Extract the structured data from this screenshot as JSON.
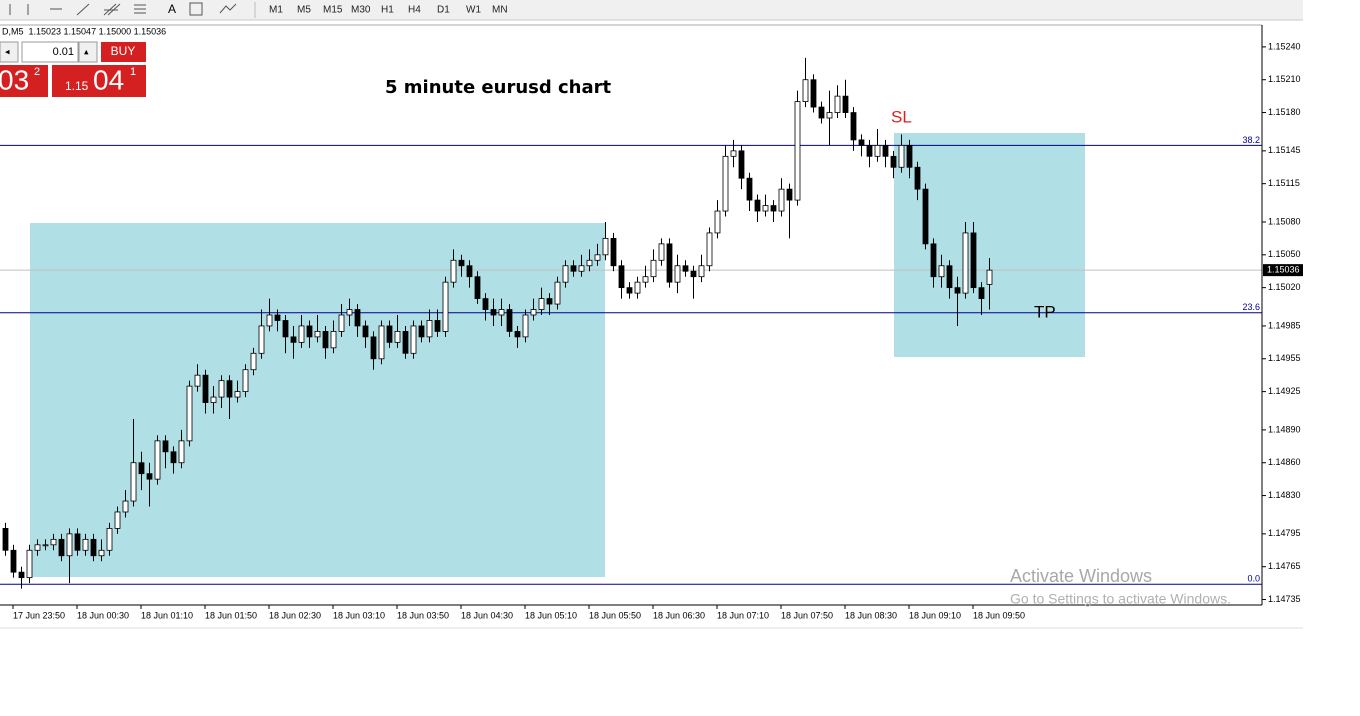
{
  "toolbar": {
    "tool_label": "A",
    "timeframes": [
      "M1",
      "M5",
      "M15",
      "M30",
      "H1",
      "H4",
      "D1",
      "W1",
      "MN"
    ]
  },
  "trade_panel": {
    "symbol_info": "D,M5  1.15023 1.15047 1.15000 1.15036",
    "lot": "0.01",
    "buy": "BUY",
    "sell_price": {
      "big": "03",
      "sup": "2"
    },
    "buy_price": {
      "prefix": "1.15",
      "big": "04",
      "sup": "1"
    }
  },
  "watermark": {
    "title": "Activate Windows",
    "subtitle": "Go to Settings to activate Windows."
  },
  "chart_data": {
    "type": "candlestick",
    "title": "5 minute eurusd chart",
    "annotations": [
      "SL",
      "TP"
    ],
    "categories": [
      null,
      "17 Jun 23:50",
      null,
      null,
      null,
      null,
      null,
      null,
      null,
      "18 Jun 00:30",
      null,
      null,
      null,
      null,
      null,
      null,
      null,
      "18 Jun 01:10",
      null,
      null,
      null,
      null,
      null,
      null,
      null,
      "18 Jun 01:50",
      null,
      null,
      null,
      null,
      null,
      null,
      null,
      "18 Jun 02:30",
      null,
      null,
      null,
      null,
      null,
      null,
      null,
      "18 Jun 03:10",
      null,
      null,
      null,
      null,
      null,
      null,
      null,
      "18 Jun 03:50",
      null,
      null,
      null,
      null,
      null,
      null,
      null,
      "18 Jun 04:30",
      null,
      null,
      null,
      null,
      null,
      null,
      null,
      "18 Jun 05:10",
      null,
      null,
      null,
      null,
      null,
      null,
      null,
      "18 Jun 05:50",
      null,
      null,
      null,
      null,
      null,
      null,
      null,
      "18 Jun 06:30",
      null,
      null,
      null,
      null,
      null,
      null,
      null,
      "18 Jun 07:10",
      null,
      null,
      null,
      null,
      null,
      null,
      null,
      "18 Jun 07:50",
      null,
      null,
      null,
      null,
      null,
      null,
      null,
      "18 Jun 08:30",
      null,
      null,
      null,
      null,
      null,
      null,
      null,
      "18 Jun 09:10",
      null,
      null,
      null,
      null,
      null,
      null,
      null,
      "18 Jun 09:50",
      null,
      null
    ],
    "open": [
      1.148,
      1.1478,
      1.1476,
      1.14755,
      1.1478,
      1.14785,
      1.14785,
      1.1479,
      1.14775,
      1.14795,
      1.1478,
      1.1479,
      1.14775,
      1.1478,
      1.148,
      1.14815,
      1.14825,
      1.1486,
      1.1485,
      1.14845,
      1.1488,
      1.1487,
      1.1486,
      1.1488,
      1.1493,
      1.1494,
      1.14915,
      1.1492,
      1.14935,
      1.1492,
      1.14925,
      1.14945,
      1.1496,
      1.14985,
      1.14995,
      1.1499,
      1.14975,
      1.1497,
      1.14985,
      1.14975,
      1.1498,
      1.14965,
      1.1498,
      1.14995,
      1.15,
      1.14985,
      1.14975,
      1.14955,
      1.14985,
      1.1497,
      1.1498,
      1.1496,
      1.14985,
      1.14975,
      1.1499,
      1.1498,
      1.15025,
      1.15045,
      1.1504,
      1.1503,
      1.1501,
      1.15,
      1.14995,
      1.15,
      1.1498,
      1.14975,
      1.14995,
      1.15,
      1.1501,
      1.15005,
      1.15025,
      1.1504,
      1.15035,
      1.1504,
      1.15045,
      1.1505,
      1.15065,
      1.1504,
      1.1502,
      1.15015,
      1.15025,
      1.1503,
      1.15045,
      1.1506,
      1.15025,
      1.1504,
      1.15035,
      1.1503,
      1.1504,
      1.1507,
      1.1509,
      1.1514,
      1.15145,
      1.1512,
      1.151,
      1.1509,
      1.15095,
      1.1509,
      1.1511,
      1.151,
      1.1519,
      1.1521,
      1.15185,
      1.15175,
      1.1518,
      1.15195,
      1.1518,
      1.15155,
      1.1515,
      1.1514,
      1.1515,
      1.1514,
      1.1513,
      1.1515,
      1.1513,
      1.1511,
      1.1506,
      1.1503,
      1.1504,
      1.1502,
      1.15015,
      1.1507,
      1.1502,
      1.15023
    ],
    "high": [
      1.14805,
      1.14785,
      1.14765,
      1.14785,
      1.1479,
      1.1479,
      1.14795,
      1.14795,
      1.148,
      1.148,
      1.14795,
      1.14795,
      1.1479,
      1.14805,
      1.1482,
      1.14835,
      1.149,
      1.1487,
      1.1486,
      1.14885,
      1.14885,
      1.14875,
      1.1489,
      1.14935,
      1.1495,
      1.14945,
      1.1493,
      1.1494,
      1.1494,
      1.14935,
      1.1495,
      1.14965,
      1.15,
      1.1501,
      1.15,
      1.14995,
      1.14985,
      1.14995,
      1.1499,
      1.14995,
      1.14985,
      1.1499,
      1.15005,
      1.1501,
      1.15005,
      1.1499,
      1.1498,
      1.1499,
      1.1499,
      1.14995,
      1.14985,
      1.1499,
      1.1499,
      1.15,
      1.15,
      1.1503,
      1.15055,
      1.1505,
      1.15045,
      1.15035,
      1.15015,
      1.1501,
      1.1501,
      1.15005,
      1.14985,
      1.15,
      1.1501,
      1.1502,
      1.15015,
      1.1503,
      1.15045,
      1.15045,
      1.1505,
      1.15055,
      1.1506,
      1.1508,
      1.1507,
      1.15045,
      1.15025,
      1.1503,
      1.1504,
      1.15055,
      1.15065,
      1.15065,
      1.1505,
      1.15045,
      1.1504,
      1.1505,
      1.15075,
      1.151,
      1.1515,
      1.15155,
      1.1515,
      1.15125,
      1.15105,
      1.15105,
      1.151,
      1.1512,
      1.15115,
      1.152,
      1.1523,
      1.15215,
      1.1519,
      1.152,
      1.15205,
      1.1521,
      1.15185,
      1.1516,
      1.15155,
      1.15165,
      1.15155,
      1.15145,
      1.1516,
      1.15155,
      1.15135,
      1.15115,
      1.15065,
      1.1505,
      1.15045,
      1.1503,
      1.1508,
      1.1508,
      1.15025,
      1.15047
    ],
    "low": [
      1.14775,
      1.14755,
      1.14745,
      1.1475,
      1.14775,
      1.1478,
      1.1478,
      1.1477,
      1.1475,
      1.14775,
      1.14775,
      1.1477,
      1.1477,
      1.14775,
      1.14795,
      1.1481,
      1.1482,
      1.14835,
      1.1482,
      1.1484,
      1.14855,
      1.1485,
      1.14855,
      1.14875,
      1.14925,
      1.14905,
      1.14905,
      1.1491,
      1.149,
      1.14915,
      1.1492,
      1.1494,
      1.14955,
      1.1498,
      1.1498,
      1.1496,
      1.14955,
      1.14965,
      1.14965,
      1.1497,
      1.14955,
      1.1496,
      1.14975,
      1.14985,
      1.14975,
      1.14965,
      1.14945,
      1.1495,
      1.14965,
      1.14965,
      1.14955,
      1.14955,
      1.1497,
      1.1497,
      1.14975,
      1.14975,
      1.1502,
      1.1503,
      1.1502,
      1.15005,
      1.1499,
      1.14985,
      1.14985,
      1.14975,
      1.14965,
      1.1497,
      1.1499,
      1.14995,
      1.14995,
      1.15,
      1.1502,
      1.1503,
      1.1503,
      1.15035,
      1.1504,
      1.15045,
      1.15035,
      1.1501,
      1.1501,
      1.1501,
      1.1502,
      1.15025,
      1.1504,
      1.1502,
      1.15015,
      1.1503,
      1.1501,
      1.15025,
      1.15035,
      1.15065,
      1.15085,
      1.1513,
      1.1511,
      1.1509,
      1.1508,
      1.15085,
      1.1508,
      1.15085,
      1.15065,
      1.15095,
      1.15185,
      1.1518,
      1.1517,
      1.1515,
      1.15175,
      1.15175,
      1.15145,
      1.1514,
      1.1513,
      1.15135,
      1.1513,
      1.1512,
      1.15125,
      1.1512,
      1.151,
      1.15055,
      1.1502,
      1.1502,
      1.1501,
      1.14985,
      1.1501,
      1.15015,
      1.14995,
      1.15
    ],
    "close": [
      1.1478,
      1.1476,
      1.14755,
      1.1478,
      1.14785,
      1.14785,
      1.1479,
      1.14775,
      1.14795,
      1.1478,
      1.1479,
      1.14775,
      1.1478,
      1.148,
      1.14815,
      1.14825,
      1.1486,
      1.1485,
      1.14845,
      1.1488,
      1.1487,
      1.1486,
      1.1488,
      1.1493,
      1.1494,
      1.14915,
      1.1492,
      1.14935,
      1.1492,
      1.14925,
      1.14945,
      1.1496,
      1.14985,
      1.14995,
      1.1499,
      1.14975,
      1.1497,
      1.14985,
      1.14975,
      1.1498,
      1.14965,
      1.1498,
      1.14995,
      1.15,
      1.14985,
      1.14975,
      1.14955,
      1.14985,
      1.1497,
      1.1498,
      1.1496,
      1.14985,
      1.14975,
      1.1499,
      1.1498,
      1.15025,
      1.15045,
      1.1504,
      1.1503,
      1.1501,
      1.15,
      1.14995,
      1.15,
      1.1498,
      1.14975,
      1.14995,
      1.15,
      1.1501,
      1.15005,
      1.15025,
      1.1504,
      1.15035,
      1.1504,
      1.15045,
      1.1505,
      1.15065,
      1.1504,
      1.1502,
      1.15015,
      1.15025,
      1.1503,
      1.15045,
      1.1506,
      1.15025,
      1.1504,
      1.15035,
      1.1503,
      1.1504,
      1.1507,
      1.1509,
      1.1514,
      1.15145,
      1.1512,
      1.151,
      1.1509,
      1.15095,
      1.1509,
      1.1511,
      1.151,
      1.1519,
      1.1521,
      1.15185,
      1.15175,
      1.1518,
      1.15195,
      1.1518,
      1.15155,
      1.1515,
      1.1514,
      1.1515,
      1.1514,
      1.1513,
      1.1515,
      1.1513,
      1.1511,
      1.1506,
      1.1503,
      1.1504,
      1.1502,
      1.15015,
      1.1507,
      1.1502,
      1.1501,
      1.15036
    ],
    "ylim": [
      1.1473,
      1.1526
    ],
    "yticks": [
      {
        "value": 1.1524,
        "label": "1.15240"
      },
      {
        "value": 1.1521,
        "label": "1.15210"
      },
      {
        "value": 1.1518,
        "label": "1.15180"
      },
      {
        "value": 1.15145,
        "label": "1.15145"
      },
      {
        "value": 1.15115,
        "label": "1.15115"
      },
      {
        "value": 1.1508,
        "label": "1.15080"
      },
      {
        "value": 1.1505,
        "label": "1.15050"
      },
      {
        "value": 1.1502,
        "label": "1.15020"
      },
      {
        "value": 1.14985,
        "label": "1.14985"
      },
      {
        "value": 1.14955,
        "label": "1.14955"
      },
      {
        "value": 1.14925,
        "label": "1.14925"
      },
      {
        "value": 1.1489,
        "label": "1.14890"
      },
      {
        "value": 1.1486,
        "label": "1.14860"
      },
      {
        "value": 1.1483,
        "label": "1.14830"
      },
      {
        "value": 1.14795,
        "label": "1.14795"
      },
      {
        "value": 1.14765,
        "label": "1.14765"
      },
      {
        "value": 1.14735,
        "label": "1.14735"
      }
    ],
    "levels": [
      {
        "label": "38.2",
        "value": 1.1515
      },
      {
        "label": "23.6",
        "value": 1.14997
      },
      {
        "label": "0.0",
        "value": 1.14749
      }
    ],
    "current_price": {
      "value": 1.15036,
      "label": "1.15036"
    },
    "level_color": "#00008b",
    "bull_color": "#ffffff",
    "bear_color": "#000000"
  }
}
